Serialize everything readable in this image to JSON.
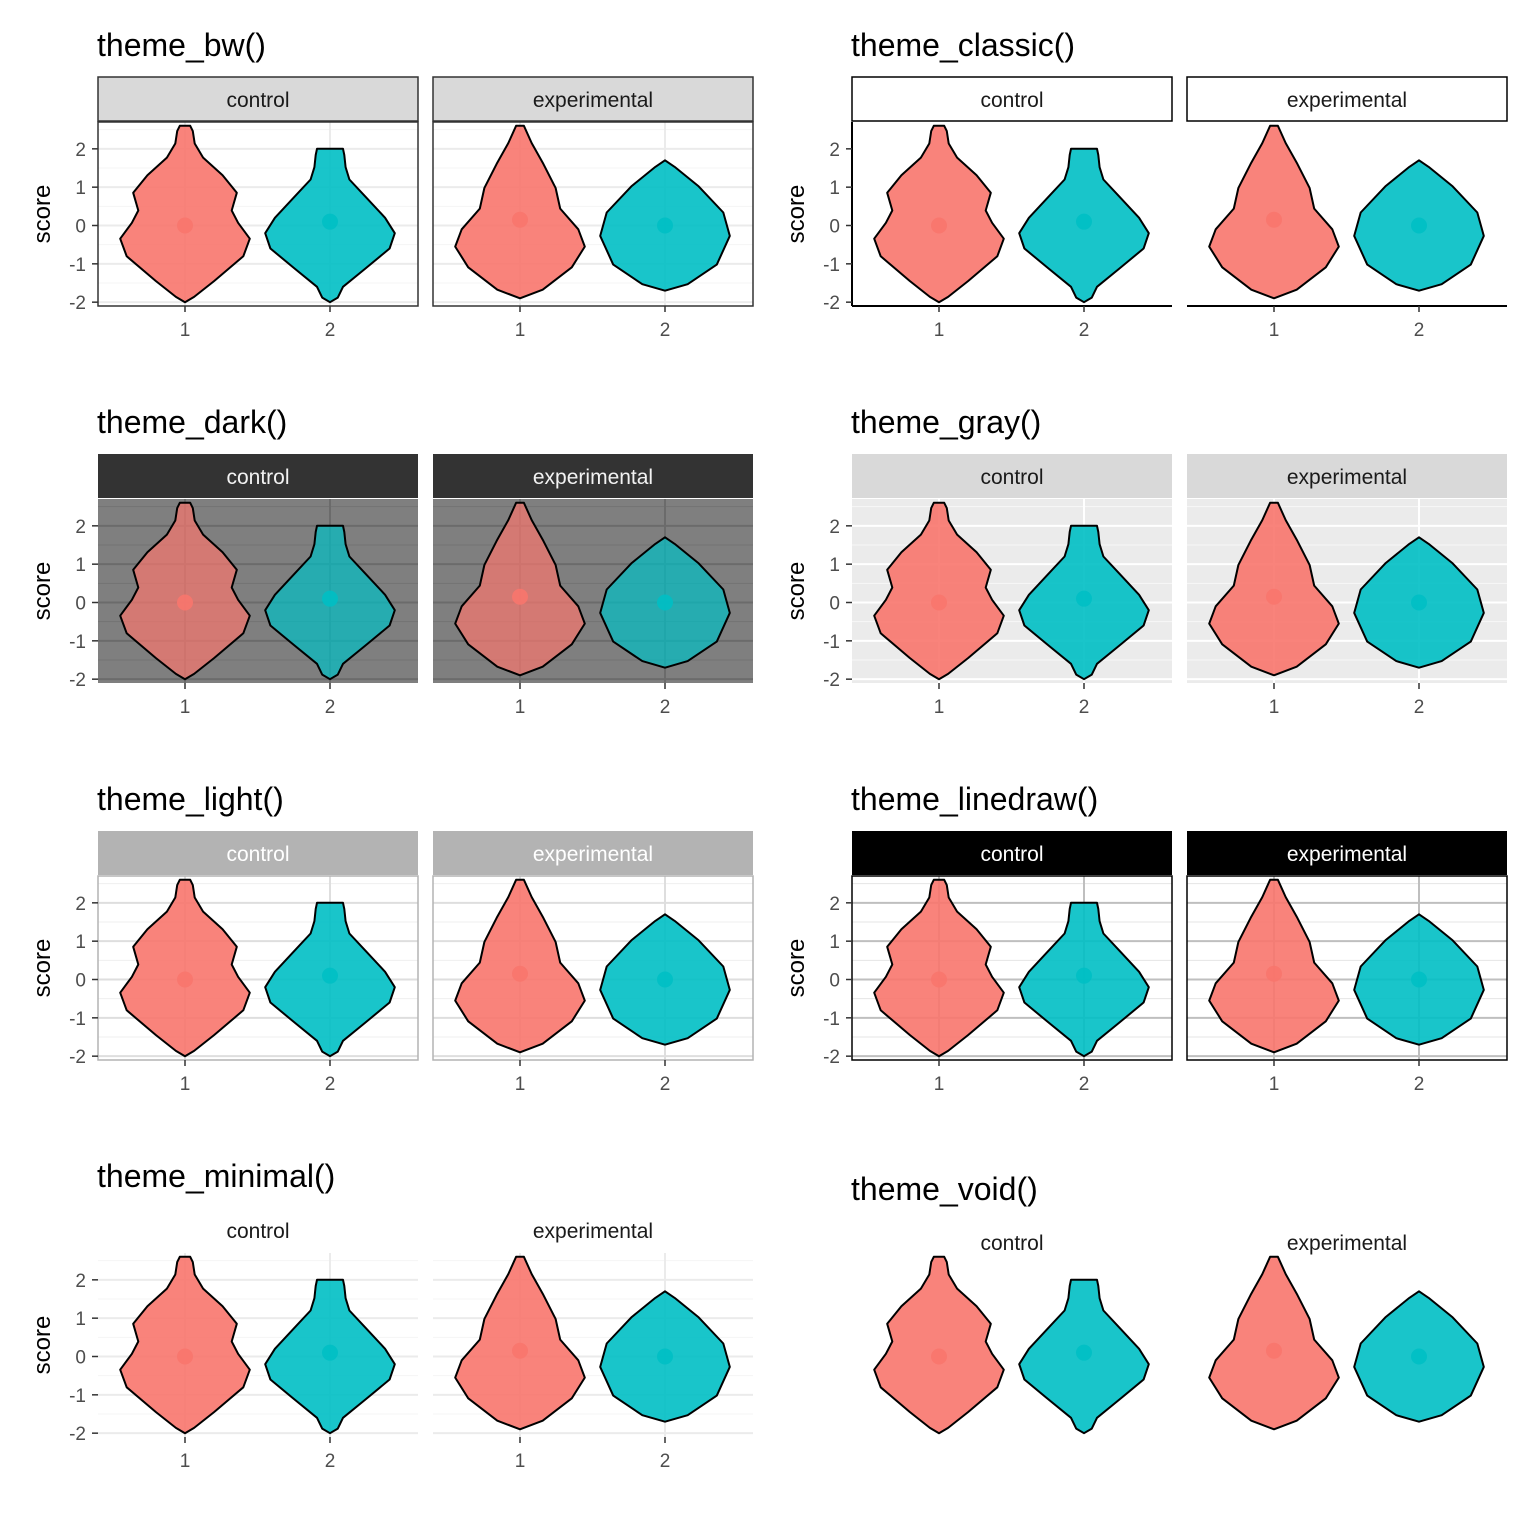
{
  "figure": {
    "type": "faceted violin plots (8 ggplot2 themes)",
    "colors": {
      "group_1": "#F8766D",
      "group_2": "#00BFC4",
      "violin_outline": "#000000",
      "dark_panel": "#7F7F7F",
      "dark_strip": "#333333",
      "gray_panel": "#EBEBEB",
      "gray_strip": "#D9D9D9",
      "bw_strip": "#D9D9D9",
      "light_strip": "#B3B3B3",
      "linedraw_strip": "#000000"
    }
  },
  "chart_data": [
    {
      "type": "violin",
      "title": "theme_bw()",
      "theme": "bw",
      "facets": [
        "control",
        "experimental"
      ],
      "categories": [
        "1",
        "2"
      ],
      "ylabel": "score",
      "ylim": [
        -2.1,
        2.7
      ],
      "yticks": [
        "-2",
        "-1",
        "0",
        "1",
        "2"
      ],
      "y_tick_values": [
        -2,
        -1,
        0,
        1,
        2
      ],
      "x_tick_labels": [
        "1",
        "2"
      ],
      "series": [
        {
          "facet": "control",
          "category": "1",
          "min": -2.0,
          "max": 2.6,
          "mean": 0.0
        },
        {
          "facet": "control",
          "category": "2",
          "min": -2.0,
          "max": 2.0,
          "mean": 0.1
        },
        {
          "facet": "experimental",
          "category": "1",
          "min": -1.9,
          "max": 2.6,
          "mean": 0.15
        },
        {
          "facet": "experimental",
          "category": "2",
          "min": -1.7,
          "max": 1.7,
          "mean": 0.0
        }
      ]
    },
    {
      "type": "violin",
      "title": "theme_classic()",
      "theme": "classic",
      "facets": [
        "control",
        "experimental"
      ],
      "categories": [
        "1",
        "2"
      ],
      "ylabel": "score",
      "ylim": [
        -2.1,
        2.7
      ],
      "yticks": [
        "-2",
        "-1",
        "0",
        "1",
        "2"
      ],
      "y_tick_values": [
        -2,
        -1,
        0,
        1,
        2
      ],
      "x_tick_labels": [
        "1",
        "2"
      ],
      "series": [
        {
          "facet": "control",
          "category": "1",
          "min": -2.0,
          "max": 2.6,
          "mean": 0.0
        },
        {
          "facet": "control",
          "category": "2",
          "min": -2.0,
          "max": 2.0,
          "mean": 0.1
        },
        {
          "facet": "experimental",
          "category": "1",
          "min": -1.9,
          "max": 2.6,
          "mean": 0.15
        },
        {
          "facet": "experimental",
          "category": "2",
          "min": -1.7,
          "max": 1.7,
          "mean": 0.0
        }
      ]
    },
    {
      "type": "violin",
      "title": "theme_dark()",
      "theme": "dark",
      "facets": [
        "control",
        "experimental"
      ],
      "categories": [
        "1",
        "2"
      ],
      "ylabel": "score",
      "ylim": [
        -2.1,
        2.7
      ],
      "yticks": [
        "-2",
        "-1",
        "0",
        "1",
        "2"
      ],
      "y_tick_values": [
        -2,
        -1,
        0,
        1,
        2
      ],
      "x_tick_labels": [
        "1",
        "2"
      ],
      "series": [
        {
          "facet": "control",
          "category": "1",
          "min": -2.0,
          "max": 2.6,
          "mean": 0.0
        },
        {
          "facet": "control",
          "category": "2",
          "min": -2.0,
          "max": 2.0,
          "mean": 0.1
        },
        {
          "facet": "experimental",
          "category": "1",
          "min": -1.9,
          "max": 2.6,
          "mean": 0.15
        },
        {
          "facet": "experimental",
          "category": "2",
          "min": -1.7,
          "max": 1.7,
          "mean": 0.0
        }
      ]
    },
    {
      "type": "violin",
      "title": "theme_gray()",
      "theme": "gray",
      "facets": [
        "control",
        "experimental"
      ],
      "categories": [
        "1",
        "2"
      ],
      "ylabel": "score",
      "ylim": [
        -2.1,
        2.7
      ],
      "yticks": [
        "-2",
        "-1",
        "0",
        "1",
        "2"
      ],
      "y_tick_values": [
        -2,
        -1,
        0,
        1,
        2
      ],
      "x_tick_labels": [
        "1",
        "2"
      ],
      "series": [
        {
          "facet": "control",
          "category": "1",
          "min": -2.0,
          "max": 2.6,
          "mean": 0.0
        },
        {
          "facet": "control",
          "category": "2",
          "min": -2.0,
          "max": 2.0,
          "mean": 0.1
        },
        {
          "facet": "experimental",
          "category": "1",
          "min": -1.9,
          "max": 2.6,
          "mean": 0.15
        },
        {
          "facet": "experimental",
          "category": "2",
          "min": -1.7,
          "max": 1.7,
          "mean": 0.0
        }
      ]
    },
    {
      "type": "violin",
      "title": "theme_light()",
      "theme": "light",
      "facets": [
        "control",
        "experimental"
      ],
      "categories": [
        "1",
        "2"
      ],
      "ylabel": "score",
      "ylim": [
        -2.1,
        2.7
      ],
      "yticks": [
        "-2",
        "-1",
        "0",
        "1",
        "2"
      ],
      "y_tick_values": [
        -2,
        -1,
        0,
        1,
        2
      ],
      "x_tick_labels": [
        "1",
        "2"
      ],
      "series": [
        {
          "facet": "control",
          "category": "1",
          "min": -2.0,
          "max": 2.6,
          "mean": 0.0
        },
        {
          "facet": "control",
          "category": "2",
          "min": -2.0,
          "max": 2.0,
          "mean": 0.1
        },
        {
          "facet": "experimental",
          "category": "1",
          "min": -1.9,
          "max": 2.6,
          "mean": 0.15
        },
        {
          "facet": "experimental",
          "category": "2",
          "min": -1.7,
          "max": 1.7,
          "mean": 0.0
        }
      ]
    },
    {
      "type": "violin",
      "title": "theme_linedraw()",
      "theme": "linedraw",
      "facets": [
        "control",
        "experimental"
      ],
      "categories": [
        "1",
        "2"
      ],
      "ylabel": "score",
      "ylim": [
        -2.1,
        2.7
      ],
      "yticks": [
        "-2",
        "-1",
        "0",
        "1",
        "2"
      ],
      "y_tick_values": [
        -2,
        -1,
        0,
        1,
        2
      ],
      "x_tick_labels": [
        "1",
        "2"
      ],
      "series": [
        {
          "facet": "control",
          "category": "1",
          "min": -2.0,
          "max": 2.6,
          "mean": 0.0
        },
        {
          "facet": "control",
          "category": "2",
          "min": -2.0,
          "max": 2.0,
          "mean": 0.1
        },
        {
          "facet": "experimental",
          "category": "1",
          "min": -1.9,
          "max": 2.6,
          "mean": 0.15
        },
        {
          "facet": "experimental",
          "category": "2",
          "min": -1.7,
          "max": 1.7,
          "mean": 0.0
        }
      ]
    },
    {
      "type": "violin",
      "title": "theme_minimal()",
      "theme": "minimal",
      "facets": [
        "control",
        "experimental"
      ],
      "categories": [
        "1",
        "2"
      ],
      "ylabel": "score",
      "ylim": [
        -2.1,
        2.7
      ],
      "yticks": [
        "-2",
        "-1",
        "0",
        "1",
        "2"
      ],
      "y_tick_values": [
        -2,
        -1,
        0,
        1,
        2
      ],
      "x_tick_labels": [
        "1",
        "2"
      ],
      "series": [
        {
          "facet": "control",
          "category": "1",
          "min": -2.0,
          "max": 2.6,
          "mean": 0.0
        },
        {
          "facet": "control",
          "category": "2",
          "min": -2.0,
          "max": 2.0,
          "mean": 0.1
        },
        {
          "facet": "experimental",
          "category": "1",
          "min": -1.9,
          "max": 2.6,
          "mean": 0.15
        },
        {
          "facet": "experimental",
          "category": "2",
          "min": -1.7,
          "max": 1.7,
          "mean": 0.0
        }
      ]
    },
    {
      "type": "violin",
      "title": "theme_void()",
      "theme": "void",
      "facets": [
        "control",
        "experimental"
      ],
      "categories": [
        "1",
        "2"
      ],
      "ylabel": "",
      "ylim": [
        -2.1,
        2.7
      ],
      "yticks": [],
      "y_tick_values": [],
      "x_tick_labels": [],
      "series": [
        {
          "facet": "control",
          "category": "1",
          "min": -2.0,
          "max": 2.6,
          "mean": 0.0
        },
        {
          "facet": "control",
          "category": "2",
          "min": -2.0,
          "max": 2.0,
          "mean": 0.1
        },
        {
          "facet": "experimental",
          "category": "1",
          "min": -1.9,
          "max": 2.6,
          "mean": 0.15
        },
        {
          "facet": "experimental",
          "category": "2",
          "min": -1.7,
          "max": 1.7,
          "mean": 0.0
        }
      ]
    }
  ]
}
